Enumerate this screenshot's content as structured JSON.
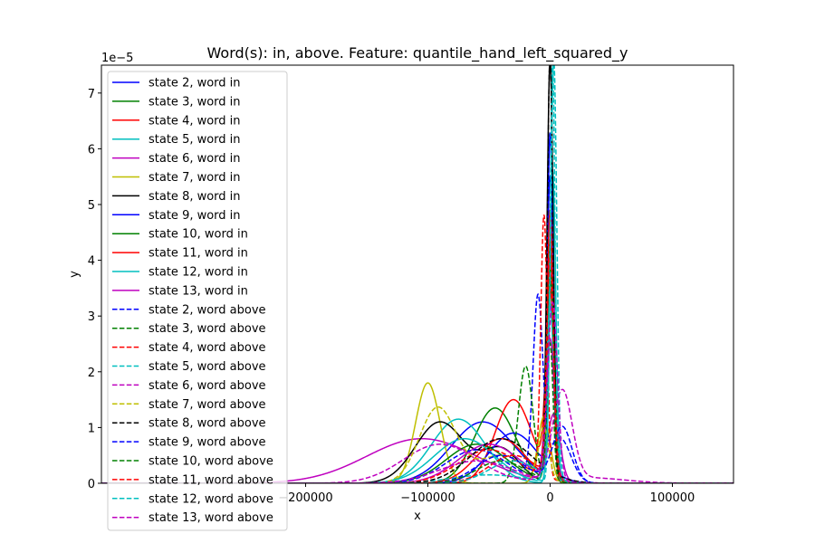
{
  "chart_data": {
    "type": "line",
    "title": "Word(s): in, above. Feature: quantile_hand_left_squared_y",
    "xlabel": "x",
    "ylabel": "y",
    "y_offset_label": "1e−5",
    "xlim": [
      -367000,
      150000
    ],
    "ylim": [
      0,
      7.5
    ],
    "x_ticks": [
      {
        "value": -200000,
        "label": "−200000"
      },
      {
        "value": -100000,
        "label": "−100000"
      },
      {
        "value": 0,
        "label": "0"
      },
      {
        "value": 100000,
        "label": "100000"
      }
    ],
    "y_ticks": [
      {
        "value": 0,
        "label": "0"
      },
      {
        "value": 1,
        "label": "1"
      },
      {
        "value": 2,
        "label": "2"
      },
      {
        "value": 3,
        "label": "3"
      },
      {
        "value": 4,
        "label": "4"
      },
      {
        "value": 5,
        "label": "5"
      },
      {
        "value": 6,
        "label": "6"
      },
      {
        "value": 7,
        "label": "7"
      }
    ],
    "legend_position": "upper-left",
    "series": [
      {
        "name": "state 2, word in",
        "color": "#0000ff",
        "dash": "solid",
        "components": [
          {
            "mu": -55000,
            "sigma": 26000,
            "amp": 1.1
          },
          {
            "mu": 0,
            "sigma": 2600,
            "amp": 5.4
          }
        ]
      },
      {
        "name": "state 3, word in",
        "color": "#008000",
        "dash": "solid",
        "components": [
          {
            "mu": -45000,
            "sigma": 17000,
            "amp": 1.35
          },
          {
            "mu": 1000,
            "sigma": 3000,
            "amp": 3.6
          }
        ]
      },
      {
        "name": "state 4, word in",
        "color": "#ff0000",
        "dash": "solid",
        "components": [
          {
            "mu": -30000,
            "sigma": 15000,
            "amp": 1.5
          },
          {
            "mu": 0,
            "sigma": 3400,
            "amp": 3.3
          }
        ]
      },
      {
        "name": "state 5, word in",
        "color": "#00bfbf",
        "dash": "solid",
        "components": [
          {
            "mu": -75000,
            "sigma": 22000,
            "amp": 1.15
          },
          {
            "mu": 2000,
            "sigma": 2600,
            "amp": 5.6
          }
        ]
      },
      {
        "name": "state 6, word in",
        "color": "#bf00bf",
        "dash": "solid",
        "components": [
          {
            "mu": -105000,
            "sigma": 45000,
            "amp": 0.8
          },
          {
            "mu": 3000,
            "sigma": 5000,
            "amp": 1.2
          }
        ]
      },
      {
        "name": "state 7, word in",
        "color": "#bfbf00",
        "dash": "solid",
        "components": [
          {
            "mu": -100000,
            "sigma": 10000,
            "amp": 1.8
          },
          {
            "mu": -5000,
            "sigma": 5000,
            "amp": 1.2
          }
        ]
      },
      {
        "name": "state 8, word in",
        "color": "#000000",
        "dash": "solid",
        "components": [
          {
            "mu": -90000,
            "sigma": 20000,
            "amp": 1.1
          },
          {
            "mu": -40000,
            "sigma": 15000,
            "amp": 0.6
          },
          {
            "mu": 0,
            "sigma": 2500,
            "amp": 7.6
          }
        ]
      },
      {
        "name": "state 9, word in",
        "color": "#0000ff",
        "dash": "solid",
        "components": [
          {
            "mu": -30000,
            "sigma": 20000,
            "amp": 0.9
          },
          {
            "mu": 0,
            "sigma": 2200,
            "amp": 6.0
          }
        ]
      },
      {
        "name": "state 10, word in",
        "color": "#008000",
        "dash": "solid",
        "components": [
          {
            "mu": -60000,
            "sigma": 25000,
            "amp": 0.7
          },
          {
            "mu": 0,
            "sigma": 2500,
            "amp": 4.3
          }
        ]
      },
      {
        "name": "state 11, word in",
        "color": "#ff0000",
        "dash": "solid",
        "components": [
          {
            "mu": -40000,
            "sigma": 20000,
            "amp": 0.8
          },
          {
            "mu": 0,
            "sigma": 2400,
            "amp": 4.8
          }
        ]
      },
      {
        "name": "state 12, word in",
        "color": "#00bfbf",
        "dash": "solid",
        "components": [
          {
            "mu": -70000,
            "sigma": 25000,
            "amp": 0.8
          },
          {
            "mu": 0,
            "sigma": 3000,
            "amp": 3.2
          }
        ]
      },
      {
        "name": "state 13, word in",
        "color": "#bf00bf",
        "dash": "solid",
        "components": [
          {
            "mu": -50000,
            "sigma": 25000,
            "amp": 0.7
          },
          {
            "mu": 0,
            "sigma": 3500,
            "amp": 2.5
          }
        ]
      },
      {
        "name": "state 2, word above",
        "color": "#0000ff",
        "dash": "dashed",
        "components": [
          {
            "mu": -60000,
            "sigma": 25000,
            "amp": 0.6
          },
          {
            "mu": -10000,
            "sigma": 4000,
            "amp": 3.2
          },
          {
            "mu": 8000,
            "sigma": 9000,
            "amp": 0.8
          }
        ]
      },
      {
        "name": "state 3, word above",
        "color": "#008000",
        "dash": "dashed",
        "components": [
          {
            "mu": -20000,
            "sigma": 6000,
            "amp": 2.1
          },
          {
            "mu": 0,
            "sigma": 2500,
            "amp": 2.5
          }
        ]
      },
      {
        "name": "state 4, word above",
        "color": "#ff0000",
        "dash": "dashed",
        "components": [
          {
            "mu": -50000,
            "sigma": 25000,
            "amp": 0.6
          },
          {
            "mu": -5000,
            "sigma": 2600,
            "amp": 4.7
          }
        ]
      },
      {
        "name": "state 5, word above",
        "color": "#00bfbf",
        "dash": "dashed",
        "components": [
          {
            "mu": -50000,
            "sigma": 30000,
            "amp": 0.15
          },
          {
            "mu": 2000,
            "sigma": 2000,
            "amp": 7.5
          }
        ]
      },
      {
        "name": "state 6, word above",
        "color": "#bf00bf",
        "dash": "dashed",
        "components": [
          {
            "mu": -90000,
            "sigma": 30000,
            "amp": 0.7
          },
          {
            "mu": 10000,
            "sigma": 8000,
            "amp": 1.6
          },
          {
            "mu": 30000,
            "sigma": 30000,
            "amp": 0.1
          }
        ]
      },
      {
        "name": "state 7, word above",
        "color": "#bfbf00",
        "dash": "dashed",
        "components": [
          {
            "mu": -92000,
            "sigma": 15000,
            "amp": 1.35
          },
          {
            "mu": -40000,
            "sigma": 20000,
            "amp": 0.5
          },
          {
            "mu": -5000,
            "sigma": 4000,
            "amp": 0.9
          }
        ]
      },
      {
        "name": "state 8, word above",
        "color": "#000000",
        "dash": "dashed",
        "components": [
          {
            "mu": -40000,
            "sigma": 25000,
            "amp": 0.8
          },
          {
            "mu": 0,
            "sigma": 2200,
            "amp": 7.5
          }
        ]
      },
      {
        "name": "state 9, word above",
        "color": "#0000ff",
        "dash": "dashed",
        "components": [
          {
            "mu": -40000,
            "sigma": 20000,
            "amp": 0.5
          },
          {
            "mu": 10000,
            "sigma": 8000,
            "amp": 1.0
          }
        ]
      },
      {
        "name": "state 10, word above",
        "color": "#008000",
        "dash": "dashed",
        "components": [
          {
            "mu": -40000,
            "sigma": 20000,
            "amp": 0.4
          },
          {
            "mu": 0,
            "sigma": 3000,
            "amp": 3.8
          }
        ]
      },
      {
        "name": "state 11, word above",
        "color": "#ff0000",
        "dash": "dashed",
        "components": [
          {
            "mu": -30000,
            "sigma": 20000,
            "amp": 0.5
          },
          {
            "mu": 0,
            "sigma": 2800,
            "amp": 3.9
          }
        ]
      },
      {
        "name": "state 12, word above",
        "color": "#00bfbf",
        "dash": "dashed",
        "components": [
          {
            "mu": -30000,
            "sigma": 20000,
            "amp": 0.4
          },
          {
            "mu": 3000,
            "sigma": 2500,
            "amp": 7.5
          }
        ]
      },
      {
        "name": "state 13, word above",
        "color": "#bf00bf",
        "dash": "dashed",
        "components": [
          {
            "mu": -60000,
            "sigma": 30000,
            "amp": 0.4
          },
          {
            "mu": 2000,
            "sigma": 4000,
            "amp": 3.2
          }
        ]
      }
    ]
  }
}
